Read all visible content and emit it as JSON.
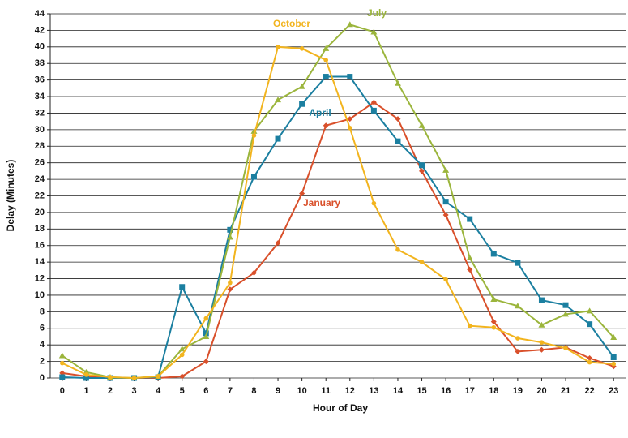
{
  "chart_data": {
    "type": "line",
    "x_label": "Hour of Day",
    "y_label": "Delay (Minutes)",
    "x": [
      0,
      1,
      2,
      3,
      4,
      5,
      6,
      7,
      8,
      9,
      10,
      11,
      12,
      13,
      14,
      15,
      16,
      17,
      18,
      19,
      20,
      21,
      22,
      23
    ],
    "xlim": [
      -0.5,
      23.5
    ],
    "xticks": [
      0,
      1,
      2,
      3,
      4,
      5,
      6,
      7,
      8,
      9,
      10,
      11,
      12,
      13,
      14,
      15,
      16,
      17,
      18,
      19,
      20,
      21,
      22,
      23
    ],
    "ylim": [
      0,
      44
    ],
    "yticks": [
      0,
      2,
      4,
      6,
      8,
      10,
      12,
      14,
      16,
      18,
      20,
      22,
      24,
      26,
      28,
      30,
      32,
      34,
      36,
      38,
      40,
      42,
      44
    ],
    "grid": true,
    "series": [
      {
        "name": "January",
        "color": "#d9502b",
        "marker": "diamond",
        "values": [
          0.6,
          0.2,
          0,
          0,
          0,
          0.2,
          2,
          10.7,
          12.7,
          16.3,
          22.3,
          30.5,
          31.3,
          33.3,
          31.3,
          25,
          19.7,
          13.1,
          6.8,
          3.2,
          3.4,
          3.7,
          2.4,
          1.4
        ]
      },
      {
        "name": "April",
        "color": "#1b7fa0",
        "marker": "square",
        "values": [
          0.1,
          0,
          0,
          0,
          0.1,
          11,
          5.4,
          17.9,
          24.3,
          28.9,
          33.1,
          36.4,
          36.4,
          32.3,
          28.6,
          25.7,
          21.3,
          19.2,
          15,
          13.9,
          9.4,
          8.8,
          6.5,
          2.5
        ]
      },
      {
        "name": "July",
        "color": "#9bb53c",
        "marker": "triangle",
        "values": [
          2.7,
          0.7,
          0.1,
          0,
          0.2,
          3.5,
          5,
          17,
          29.8,
          33.6,
          35.2,
          39.8,
          42.7,
          41.8,
          35.6,
          30.5,
          25.1,
          14.5,
          9.5,
          8.7,
          6.4,
          7.7,
          8.1,
          4.9
        ]
      },
      {
        "name": "October",
        "color": "#f2b41e",
        "marker": "circle",
        "values": [
          1.8,
          0.4,
          0.1,
          0,
          0.2,
          2.8,
          7.2,
          11.5,
          29.3,
          40,
          39.8,
          38.4,
          30.2,
          21.1,
          15.5,
          14,
          11.9,
          6.3,
          6.1,
          4.8,
          4.3,
          3.6,
          1.9,
          1.7
        ]
      }
    ]
  }
}
